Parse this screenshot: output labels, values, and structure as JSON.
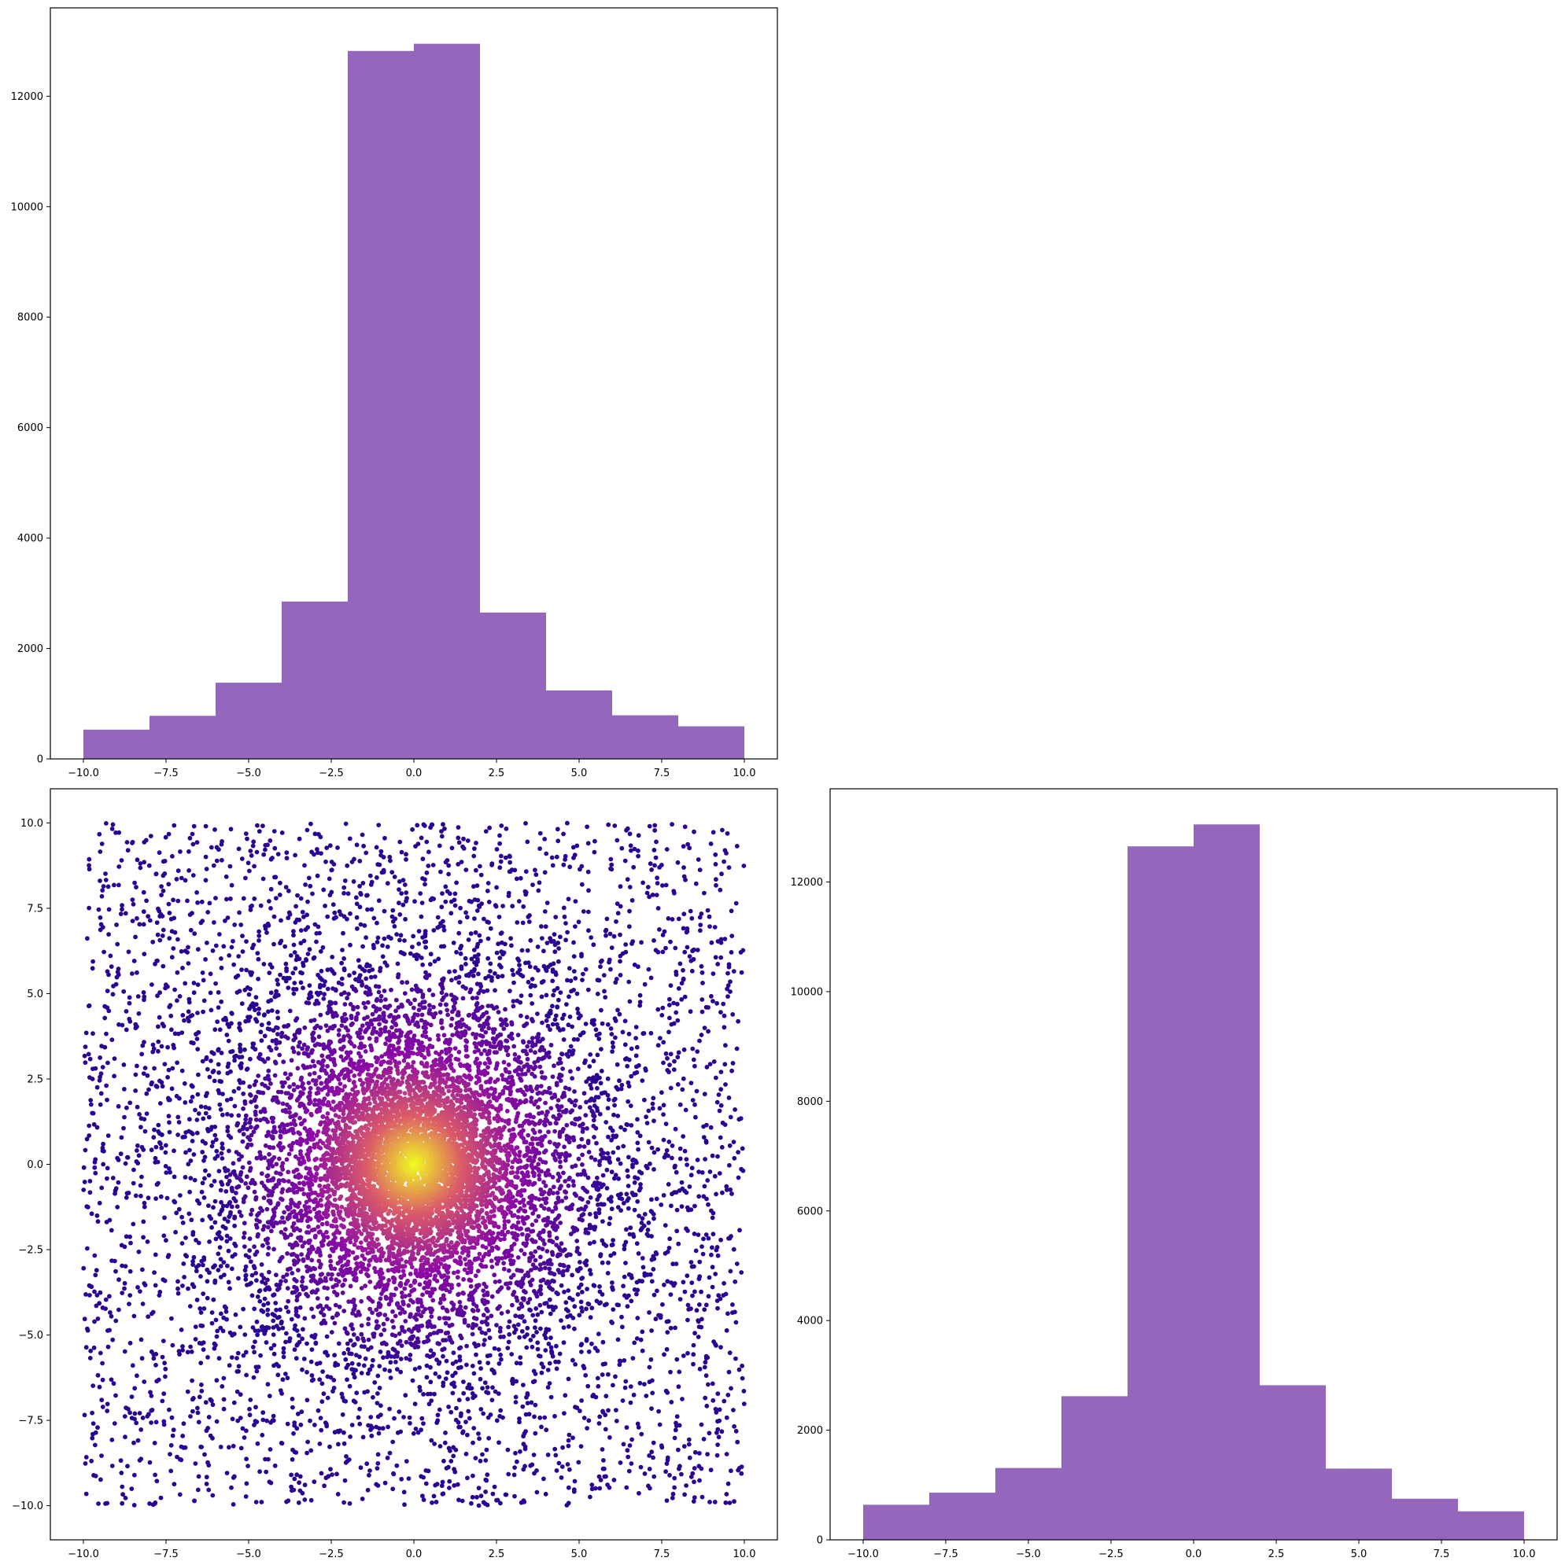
{
  "colors": {
    "hist_fill": "#9467bd",
    "scatter_outer": "#2a0593",
    "scatter_mid": "#8b0aa5",
    "scatter_inner": "#db5c68",
    "scatter_center": "#f0f921"
  },
  "chart_data": [
    {
      "type": "bar",
      "subtype": "histogram",
      "panel": "top-left",
      "bin_edges": [
        -10,
        -8,
        -6,
        -4,
        -2,
        0,
        2,
        4,
        6,
        8,
        10
      ],
      "values": [
        530,
        780,
        1380,
        2850,
        12820,
        12950,
        2650,
        1240,
        790,
        590
      ],
      "xlim": [
        -11,
        11
      ],
      "ylim": [
        0,
        13600
      ],
      "xticks": [
        -10.0,
        -7.5,
        -5.0,
        -2.5,
        0.0,
        2.5,
        5.0,
        7.5,
        10.0
      ],
      "xtick_labels": [
        "−10.0",
        "−7.5",
        "−5.0",
        "−2.5",
        "0.0",
        "2.5",
        "5.0",
        "7.5",
        "10.0"
      ],
      "yticks": [
        0,
        2000,
        4000,
        6000,
        8000,
        10000,
        12000
      ],
      "ytick_labels": [
        "0",
        "2000",
        "4000",
        "6000",
        "8000",
        "10000",
        "12000"
      ],
      "title": "",
      "xlabel": "",
      "ylabel": "",
      "grid": false
    },
    {
      "type": "scatter",
      "panel": "bottom-left",
      "colormap": "plasma",
      "color_encoding": "density (bright at center)",
      "center": [
        0,
        0
      ],
      "x_range": [
        -10,
        10
      ],
      "y_range": [
        -10,
        10
      ],
      "xlim": [
        -11,
        11
      ],
      "ylim": [
        -11,
        11
      ],
      "xticks": [
        -10.0,
        -7.5,
        -5.0,
        -2.5,
        0.0,
        2.5,
        5.0,
        7.5,
        10.0
      ],
      "xtick_labels": [
        "−10.0",
        "−7.5",
        "−5.0",
        "−2.5",
        "0.0",
        "2.5",
        "5.0",
        "7.5",
        "10.0"
      ],
      "yticks": [
        -10.0,
        -7.5,
        -5.0,
        -2.5,
        0.0,
        2.5,
        5.0,
        7.5,
        10.0
      ],
      "ytick_labels": [
        "−10.0",
        "−7.5",
        "−5.0",
        "−2.5",
        "0.0",
        "2.5",
        "5.0",
        "7.5",
        "10.0"
      ],
      "title": "",
      "xlabel": "",
      "ylabel": "",
      "grid": false
    },
    {
      "type": "bar",
      "subtype": "histogram",
      "panel": "bottom-right",
      "bin_edges": [
        -10,
        -8,
        -6,
        -4,
        -2,
        0,
        2,
        4,
        6,
        8,
        10
      ],
      "values": [
        640,
        860,
        1310,
        2620,
        12650,
        13050,
        2820,
        1300,
        750,
        520
      ],
      "xlim": [
        -11,
        11
      ],
      "ylim": [
        0,
        13700
      ],
      "xticks": [
        -10.0,
        -7.5,
        -5.0,
        -2.5,
        0.0,
        2.5,
        5.0,
        7.5,
        10.0
      ],
      "xtick_labels": [
        "−10.0",
        "−7.5",
        "−5.0",
        "−2.5",
        "0.0",
        "2.5",
        "5.0",
        "7.5",
        "10.0"
      ],
      "yticks": [
        0,
        2000,
        4000,
        6000,
        8000,
        10000,
        12000
      ],
      "ytick_labels": [
        "0",
        "2000",
        "4000",
        "6000",
        "8000",
        "10000",
        "12000"
      ],
      "title": "",
      "xlabel": "",
      "ylabel": "",
      "grid": false
    }
  ]
}
